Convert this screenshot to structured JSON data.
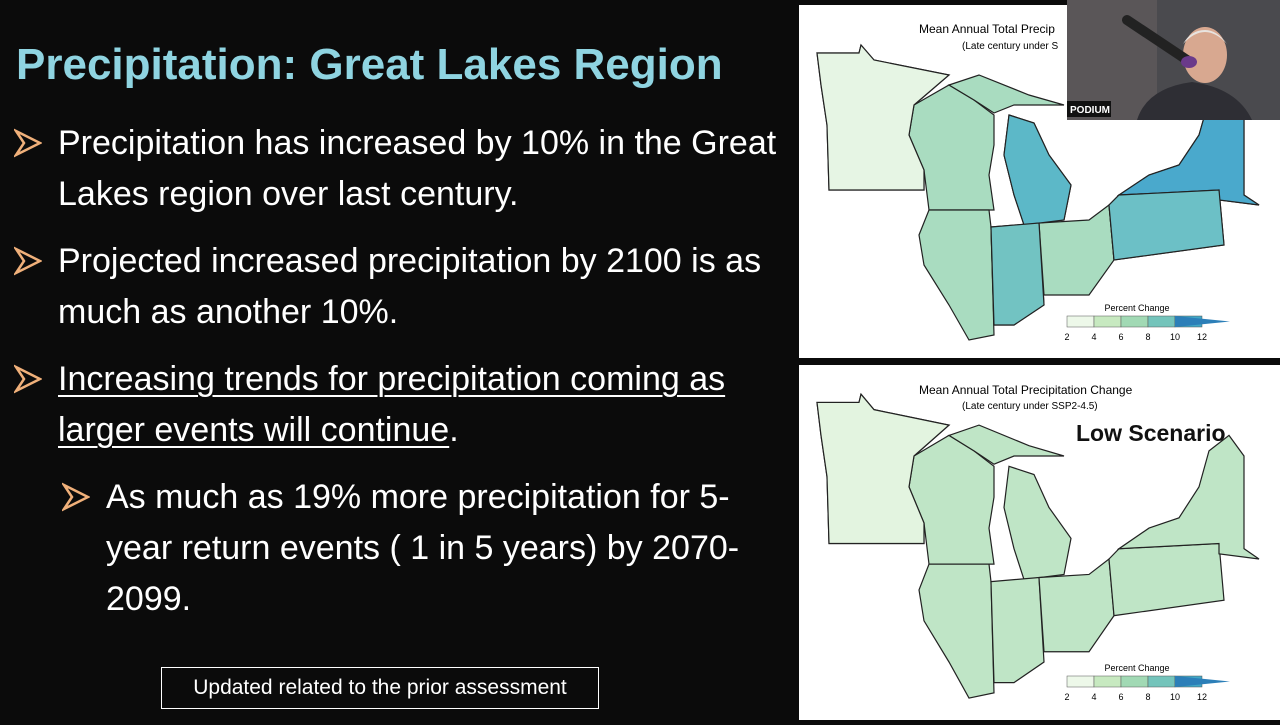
{
  "slide": {
    "title": "Precipitation: Great Lakes Region",
    "bullets": [
      {
        "text": "Precipitation has increased by 10% in the Great Lakes region over last century."
      },
      {
        "text": "Projected increased precipitation by 2100 is as much as another 10%."
      },
      {
        "text": "Increasing trends for precipitation coming as  larger events will continue",
        "suffix": "."
      }
    ],
    "sub_bullets": [
      "As much as 19% more precipitation for 5-year return events ( 1 in 5 years)  by 2070-2099."
    ],
    "note": "Updated related to the prior assessment"
  },
  "maps": [
    {
      "title": "Mean Annual Total Precip",
      "subtitle": "(Late century under S",
      "legend_title": "Percent Change",
      "legend_ticks": [
        2,
        4,
        6,
        8,
        10,
        12
      ]
    },
    {
      "title": "Mean Annual Total Precipitation Change",
      "subtitle": "(Late century under SSP2-4.5)",
      "label": "Low Scenario",
      "legend_title": "Percent Change",
      "legend_ticks": [
        2,
        4,
        6,
        8,
        10,
        12
      ]
    }
  ],
  "webcam": {
    "label": "PODIUM"
  }
}
